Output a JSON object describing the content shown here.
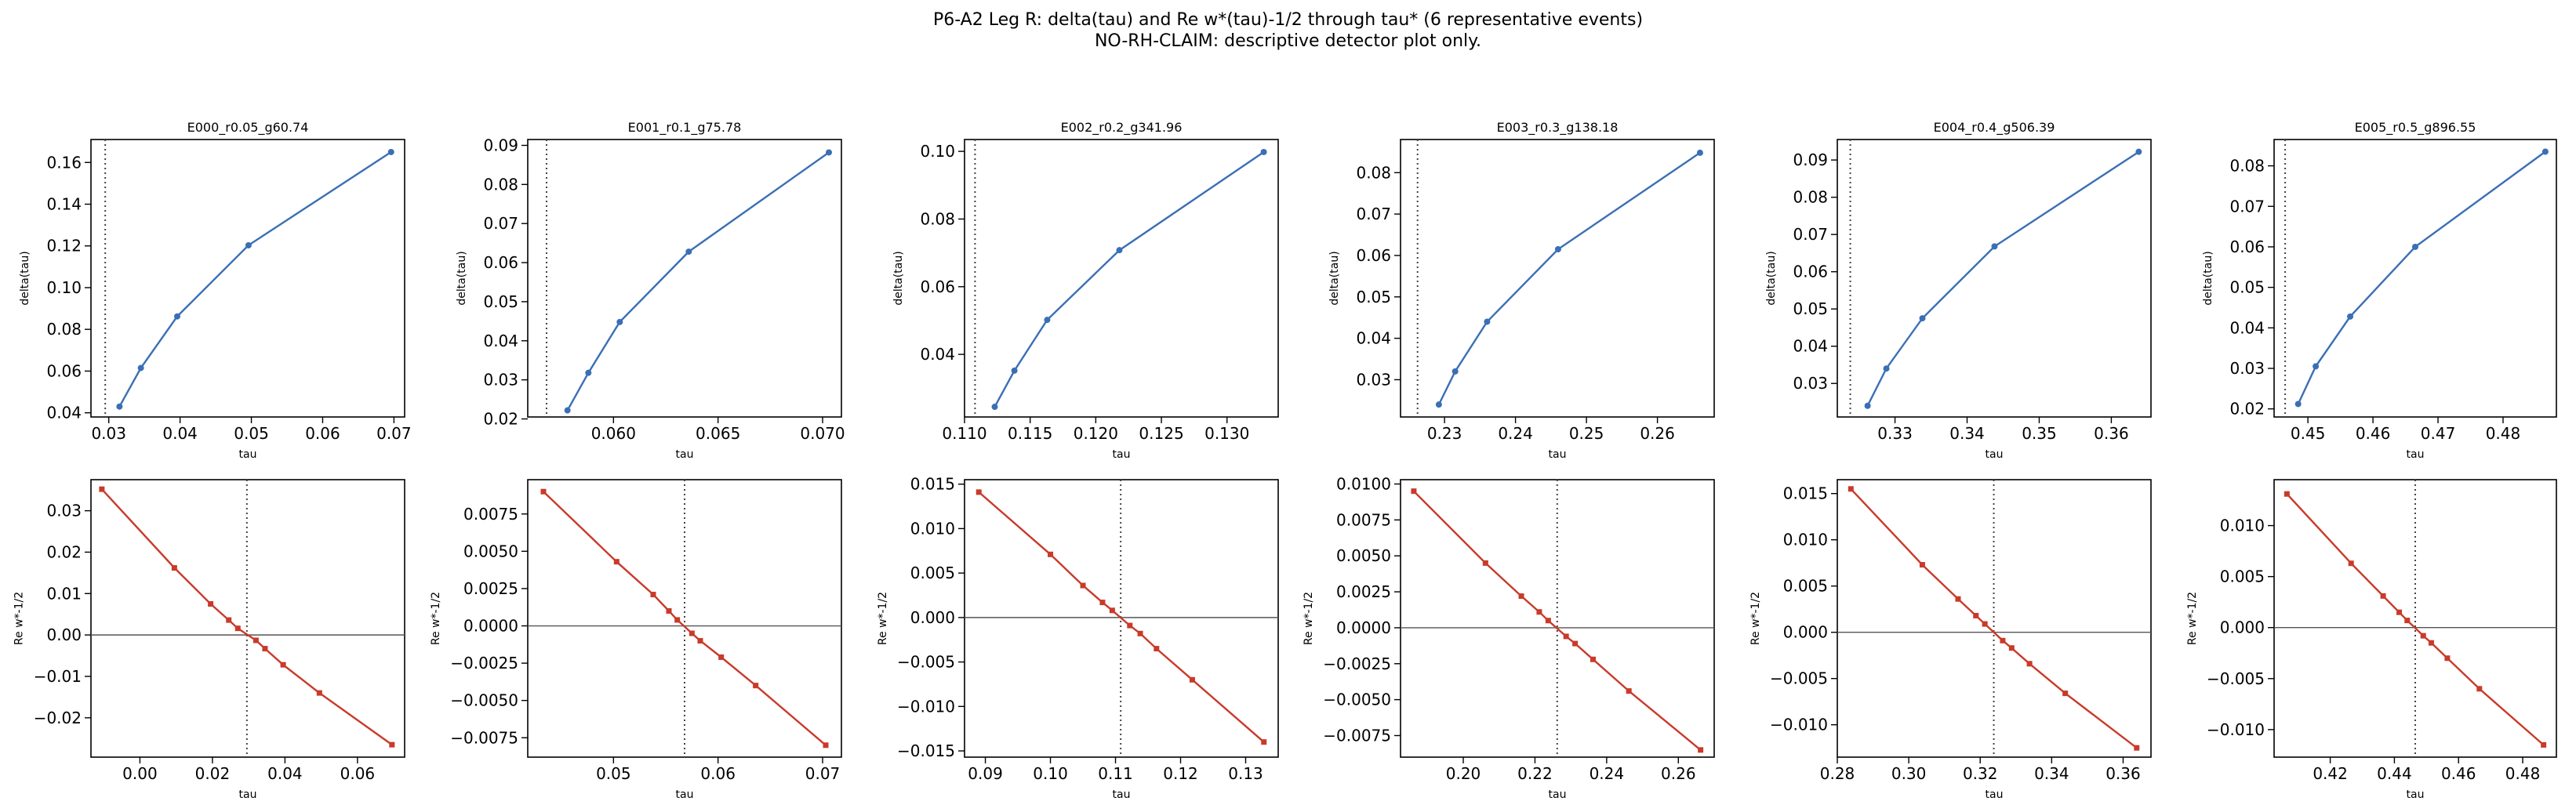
{
  "figure": {
    "title_line1": "P6-A2 Leg R: delta(tau) and Re w*(tau)-1/2 through tau* (6 representative events)",
    "title_line2": "NO-RH-CLAIM: descriptive detector plot only."
  },
  "colors": {
    "delta_series": "#3a6fb5",
    "re_series": "#c93a2a",
    "vline": "#444444",
    "zero_line": "#555555"
  },
  "chart_data": [
    {
      "panel": "E000-delta",
      "type": "line",
      "title": "E000_r0.05_g60.74",
      "xlabel": "tau",
      "ylabel": "delta(tau)",
      "xlim": [
        0.0275,
        0.0715
      ],
      "ylim": [
        0.038,
        0.171
      ],
      "xticks": [
        0.03,
        0.04,
        0.05,
        0.06,
        0.07
      ],
      "xtick_labels": [
        "0.03",
        "0.04",
        "0.05",
        "0.06",
        "0.07"
      ],
      "yticks": [
        0.04,
        0.06,
        0.08,
        0.1,
        0.12,
        0.14,
        0.16
      ],
      "ytick_labels": [
        "0.04",
        "0.06",
        "0.08",
        "0.10",
        "0.12",
        "0.14",
        "0.16"
      ],
      "vline": 0.0295,
      "marker": "circle",
      "series": [
        {
          "x": [
            0.0315,
            0.0345,
            0.0396,
            0.0496,
            0.0696
          ],
          "y": [
            0.043,
            0.0615,
            0.0862,
            0.1203,
            0.165
          ]
        }
      ]
    },
    {
      "panel": "E001-delta",
      "type": "line",
      "title": "E001_r0.1_g75.78",
      "xlabel": "tau",
      "ylabel": "delta(tau)",
      "xlim": [
        0.0559,
        0.0709
      ],
      "ylim": [
        0.0205,
        0.0915
      ],
      "xticks": [
        0.06,
        0.065,
        0.07
      ],
      "xtick_labels": [
        "0.060",
        "0.065",
        "0.070"
      ],
      "yticks": [
        0.02,
        0.03,
        0.04,
        0.05,
        0.06,
        0.07,
        0.08,
        0.09
      ],
      "ytick_labels": [
        "0.02",
        "0.03",
        "0.04",
        "0.05",
        "0.06",
        "0.07",
        "0.08",
        "0.09"
      ],
      "vline": 0.0568,
      "marker": "circle",
      "series": [
        {
          "x": [
            0.0578,
            0.0588,
            0.0603,
            0.0636,
            0.0703
          ],
          "y": [
            0.0222,
            0.0318,
            0.0448,
            0.0628,
            0.0882
          ]
        }
      ]
    },
    {
      "panel": "E002-delta",
      "type": "line",
      "title": "E002_r0.2_g341.96",
      "xlabel": "tau",
      "ylabel": "delta(tau)",
      "xlim": [
        0.11,
        0.1339
      ],
      "ylim": [
        0.0215,
        0.1035
      ],
      "xticks": [
        0.11,
        0.115,
        0.12,
        0.125,
        0.13
      ],
      "xtick_labels": [
        "0.110",
        "0.115",
        "0.120",
        "0.125",
        "0.130"
      ],
      "yticks": [
        0.04,
        0.06,
        0.08,
        0.1
      ],
      "ytick_labels": [
        "0.04",
        "0.06",
        "0.08",
        "0.10"
      ],
      "vline": 0.1108,
      "marker": "circle",
      "series": [
        {
          "x": [
            0.1123,
            0.1138,
            0.1163,
            0.1218,
            0.1328
          ],
          "y": [
            0.0245,
            0.0352,
            0.0502,
            0.0708,
            0.0998
          ]
        }
      ]
    },
    {
      "panel": "E003-delta",
      "type": "line",
      "title": "E003_r0.3_g138.18",
      "xlabel": "tau",
      "ylabel": "delta(tau)",
      "xlim": [
        0.2238,
        0.268
      ],
      "ylim": [
        0.021,
        0.088
      ],
      "xticks": [
        0.23,
        0.24,
        0.25,
        0.26
      ],
      "xtick_labels": [
        "0.23",
        "0.24",
        "0.25",
        "0.26"
      ],
      "yticks": [
        0.03,
        0.04,
        0.05,
        0.06,
        0.07,
        0.08
      ],
      "ytick_labels": [
        "0.03",
        "0.04",
        "0.05",
        "0.06",
        "0.07",
        "0.08"
      ],
      "vline": 0.2262,
      "marker": "circle",
      "series": [
        {
          "x": [
            0.2292,
            0.2315,
            0.236,
            0.246,
            0.266
          ],
          "y": [
            0.024,
            0.032,
            0.044,
            0.0615,
            0.0848
          ]
        }
      ]
    },
    {
      "panel": "E004-delta",
      "type": "line",
      "title": "E004_r0.4_g506.39",
      "xlabel": "tau",
      "ylabel": "delta(tau)",
      "xlim": [
        0.322,
        0.3655
      ],
      "ylim": [
        0.021,
        0.0955
      ],
      "xticks": [
        0.33,
        0.34,
        0.35,
        0.36
      ],
      "xtick_labels": [
        "0.33",
        "0.34",
        "0.35",
        "0.36"
      ],
      "yticks": [
        0.03,
        0.04,
        0.05,
        0.06,
        0.07,
        0.08,
        0.09
      ],
      "ytick_labels": [
        "0.03",
        "0.04",
        "0.05",
        "0.06",
        "0.07",
        "0.08",
        "0.09"
      ],
      "vline": 0.3238,
      "marker": "circle",
      "series": [
        {
          "x": [
            0.3262,
            0.3288,
            0.3338,
            0.3438,
            0.3638
          ],
          "y": [
            0.024,
            0.034,
            0.0475,
            0.0668,
            0.0922
          ]
        }
      ]
    },
    {
      "panel": "E005-delta",
      "type": "line",
      "title": "E005_r0.5_g896.55",
      "xlabel": "tau",
      "ylabel": "delta(tau)",
      "xlim": [
        0.4448,
        0.4882
      ],
      "ylim": [
        0.018,
        0.0865
      ],
      "xticks": [
        0.45,
        0.46,
        0.47,
        0.48
      ],
      "xtick_labels": [
        "0.45",
        "0.46",
        "0.47",
        "0.48"
      ],
      "yticks": [
        0.02,
        0.03,
        0.04,
        0.05,
        0.06,
        0.07,
        0.08
      ],
      "ytick_labels": [
        "0.02",
        "0.03",
        "0.04",
        "0.05",
        "0.06",
        "0.07",
        "0.08"
      ],
      "vline": 0.4465,
      "marker": "circle",
      "series": [
        {
          "x": [
            0.4485,
            0.4512,
            0.4565,
            0.4665,
            0.4865
          ],
          "y": [
            0.0212,
            0.0305,
            0.0428,
            0.06,
            0.0835
          ]
        }
      ]
    },
    {
      "panel": "E000-re",
      "type": "line",
      "title": "",
      "xlabel": "tau",
      "ylabel": "Re w*-1/2",
      "xlim": [
        -0.0135,
        0.073
      ],
      "ylim": [
        -0.0295,
        0.0375
      ],
      "xticks": [
        0.0,
        0.02,
        0.04,
        0.06
      ],
      "xtick_labels": [
        "0.00",
        "0.02",
        "0.04",
        "0.06"
      ],
      "yticks": [
        -0.02,
        -0.01,
        0.0,
        0.01,
        0.02,
        0.03
      ],
      "ytick_labels": [
        "−0.02",
        "−0.01",
        "0.00",
        "0.01",
        "0.02",
        "0.03"
      ],
      "vline": 0.0295,
      "hline": 0,
      "marker": "square",
      "series": [
        {
          "x": [
            -0.0105,
            0.0095,
            0.0195,
            0.0245,
            0.027,
            0.032,
            0.0345,
            0.0395,
            0.0495,
            0.0695
          ],
          "y": [
            0.0352,
            0.0162,
            0.0075,
            0.0036,
            0.0016,
            -0.0013,
            -0.0033,
            -0.0072,
            -0.014,
            -0.0265
          ]
        }
      ]
    },
    {
      "panel": "E001-re",
      "type": "line",
      "title": "",
      "xlabel": "tau",
      "ylabel": "Re w*-1/2",
      "xlim": [
        0.0418,
        0.0718
      ],
      "ylim": [
        -0.0088,
        0.0098
      ],
      "xticks": [
        0.05,
        0.06,
        0.07
      ],
      "xtick_labels": [
        "0.05",
        "0.06",
        "0.07"
      ],
      "yticks": [
        -0.0075,
        -0.005,
        -0.0025,
        0.0,
        0.0025,
        0.005,
        0.0075
      ],
      "ytick_labels": [
        "−0.0075",
        "−0.0050",
        "−0.0025",
        "0.0000",
        "0.0025",
        "0.0050",
        "0.0075"
      ],
      "vline": 0.0568,
      "hline": 0,
      "marker": "square",
      "series": [
        {
          "x": [
            0.0433,
            0.0503,
            0.0538,
            0.0553,
            0.0561,
            0.0575,
            0.0583,
            0.0603,
            0.0636,
            0.0703
          ],
          "y": [
            0.009,
            0.0043,
            0.0021,
            0.001,
            0.0004,
            -0.0005,
            -0.001,
            -0.0021,
            -0.004,
            -0.008
          ]
        }
      ]
    },
    {
      "panel": "E002-re",
      "type": "line",
      "title": "",
      "xlabel": "tau",
      "ylabel": "Re w*-1/2",
      "xlim": [
        0.0868,
        0.135
      ],
      "ylim": [
        -0.0157,
        0.0155
      ],
      "xticks": [
        0.09,
        0.1,
        0.11,
        0.12,
        0.13
      ],
      "xtick_labels": [
        "0.09",
        "0.10",
        "0.11",
        "0.12",
        "0.13"
      ],
      "yticks": [
        -0.015,
        -0.01,
        -0.005,
        0.0,
        0.005,
        0.01,
        0.015
      ],
      "ytick_labels": [
        "−0.015",
        "−0.010",
        "−0.005",
        "0.000",
        "0.005",
        "0.010",
        "0.015"
      ],
      "vline": 0.1108,
      "hline": 0,
      "marker": "square",
      "series": [
        {
          "x": [
            0.089,
            0.1,
            0.105,
            0.108,
            0.1095,
            0.1122,
            0.1138,
            0.1163,
            0.1218,
            0.1328
          ],
          "y": [
            0.0141,
            0.0071,
            0.0036,
            0.0017,
            0.0008,
            -0.0009,
            -0.0018,
            -0.0035,
            -0.007,
            -0.014
          ]
        }
      ]
    },
    {
      "panel": "E003-re",
      "type": "line",
      "title": "",
      "xlabel": "tau",
      "ylabel": "Re w*-1/2",
      "xlim": [
        0.1825,
        0.27
      ],
      "ylim": [
        -0.009,
        0.0103
      ],
      "xticks": [
        0.2,
        0.22,
        0.24,
        0.26
      ],
      "xtick_labels": [
        "0.20",
        "0.22",
        "0.24",
        "0.26"
      ],
      "yticks": [
        -0.0075,
        -0.005,
        -0.0025,
        0.0,
        0.0025,
        0.005,
        0.0075,
        0.01
      ],
      "ytick_labels": [
        "−0.0075",
        "−0.0050",
        "−0.0025",
        "0.0000",
        "0.0025",
        "0.0050",
        "0.0075",
        "0.0100"
      ],
      "vline": 0.2262,
      "hline": 0,
      "marker": "square",
      "series": [
        {
          "x": [
            0.1862,
            0.2062,
            0.2162,
            0.2212,
            0.2237,
            0.2287,
            0.2312,
            0.2362,
            0.2462,
            0.2662
          ],
          "y": [
            0.0095,
            0.0045,
            0.0022,
            0.0011,
            0.0005,
            -0.0006,
            -0.0011,
            -0.0022,
            -0.0044,
            -0.0085
          ]
        }
      ]
    },
    {
      "panel": "E004-re",
      "type": "line",
      "title": "",
      "xlabel": "tau",
      "ylabel": "Re w*-1/2",
      "xlim": [
        0.28,
        0.3678
      ],
      "ylim": [
        -0.0135,
        0.0165
      ],
      "xticks": [
        0.28,
        0.3,
        0.32,
        0.34,
        0.36
      ],
      "xtick_labels": [
        "0.28",
        "0.30",
        "0.32",
        "0.34",
        "0.36"
      ],
      "yticks": [
        -0.01,
        -0.005,
        0.0,
        0.005,
        0.01,
        0.015
      ],
      "ytick_labels": [
        "−0.010",
        "−0.005",
        "0.000",
        "0.005",
        "0.010",
        "0.015"
      ],
      "vline": 0.3238,
      "hline": 0,
      "marker": "square",
      "series": [
        {
          "x": [
            0.2838,
            0.3038,
            0.3138,
            0.3188,
            0.3213,
            0.3263,
            0.3288,
            0.3338,
            0.3438,
            0.3638
          ],
          "y": [
            0.0155,
            0.0073,
            0.0036,
            0.0018,
            0.0009,
            -0.0009,
            -0.0017,
            -0.0034,
            -0.0066,
            -0.0125
          ]
        }
      ]
    },
    {
      "panel": "E005-re",
      "type": "line",
      "title": "",
      "xlabel": "tau",
      "ylabel": "Re w*-1/2",
      "xlim": [
        0.4025,
        0.4905
      ],
      "ylim": [
        -0.0127,
        0.0145
      ],
      "xticks": [
        0.42,
        0.44,
        0.46,
        0.48
      ],
      "xtick_labels": [
        "0.42",
        "0.44",
        "0.46",
        "0.48"
      ],
      "yticks": [
        -0.01,
        -0.005,
        0.0,
        0.005,
        0.01
      ],
      "ytick_labels": [
        "−0.010",
        "−0.005",
        "0.000",
        "0.005",
        "0.010"
      ],
      "vline": 0.4465,
      "hline": 0,
      "marker": "square",
      "series": [
        {
          "x": [
            0.4065,
            0.4265,
            0.4365,
            0.4415,
            0.444,
            0.449,
            0.4515,
            0.4565,
            0.4665,
            0.4865
          ],
          "y": [
            0.0131,
            0.0063,
            0.0031,
            0.0015,
            0.0007,
            -0.0008,
            -0.0015,
            -0.003,
            -0.006,
            -0.0115
          ]
        }
      ]
    }
  ]
}
